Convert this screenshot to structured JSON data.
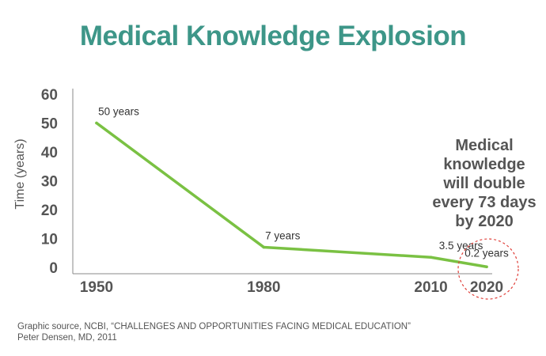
{
  "header": {
    "title": "Medical Knowledge Explosion"
  },
  "callout": {
    "lines": [
      "Medical",
      "knowledge",
      "will double",
      "every 73 days",
      "by 2020"
    ]
  },
  "source": {
    "line1": "Graphic source, NCBI, “CHALLENGES AND OPPORTUNITIES FACING MEDICAL EDUCATION”",
    "line2": "Peter Densen, MD, 2011"
  },
  "colors": {
    "title": "#3d9688",
    "line": "#7ac143",
    "axis": "#8a8a8a",
    "text": "#555555",
    "circle": "#e0403a"
  },
  "chart_data": {
    "type": "line",
    "x": [
      "1950",
      "1980",
      "2010",
      "2020"
    ],
    "x_values": [
      1950,
      1980,
      2010,
      2020
    ],
    "xlim": [
      1950,
      2020
    ],
    "ylabel": "Time (years)",
    "ylim": [
      0,
      60
    ],
    "yticks": [
      0,
      10,
      20,
      30,
      40,
      50,
      60
    ],
    "series": [
      {
        "values": [
          50,
          7,
          3.5,
          0.2
        ]
      }
    ],
    "data_labels": [
      "50 years",
      "7 years",
      "3.5 years",
      "0.2 years"
    ],
    "grid": false,
    "highlight": {
      "x": 2020,
      "style": "dashed-circle"
    }
  }
}
